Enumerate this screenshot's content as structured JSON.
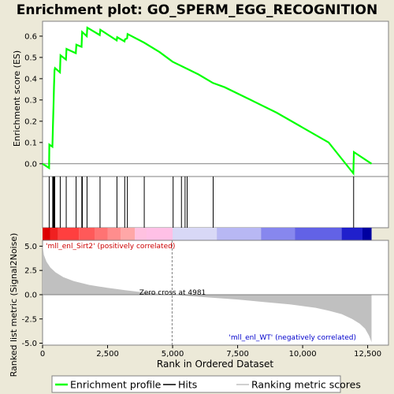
{
  "title": "Enrichment plot: GO_SPERM_EGG_RECOGNITION",
  "colors": {
    "background": "#ece9d8",
    "enrichment_line": "#00ff00",
    "hits": "#000000",
    "ranking_fill": "#c0c0c0",
    "zero_cross_line": "#808080",
    "positive_label": "#cc0000",
    "negative_label": "#0000cc"
  },
  "chart_data": [
    {
      "name": "enrichment-panel",
      "type": "line",
      "ylabel": "Enrichment score (ES)",
      "ylim": [
        -0.06,
        0.67
      ],
      "yticks": [
        "0.0",
        "0.1",
        "0.2",
        "0.3",
        "0.4",
        "0.5",
        "0.6"
      ],
      "xlim": [
        0,
        13300
      ],
      "grid": false,
      "series": [
        {
          "name": "Enrichment profile",
          "x": [
            0,
            250,
            260,
            380,
            400,
            420,
            440,
            460,
            480,
            670,
            690,
            900,
            920,
            1280,
            1300,
            1500,
            1520,
            1700,
            1720,
            2200,
            2220,
            2850,
            2870,
            3150,
            3170,
            3250,
            3270,
            3900,
            4500,
            5000,
            5500,
            6000,
            6550,
            7000,
            8000,
            9000,
            10000,
            11000,
            11950,
            11970,
            12650
          ],
          "y": [
            0.0,
            -0.02,
            0.09,
            0.08,
            0.18,
            0.27,
            0.36,
            0.44,
            0.45,
            0.43,
            0.51,
            0.49,
            0.54,
            0.52,
            0.56,
            0.55,
            0.62,
            0.6,
            0.64,
            0.605,
            0.63,
            0.58,
            0.595,
            0.575,
            0.585,
            0.59,
            0.61,
            0.57,
            0.525,
            0.48,
            0.45,
            0.42,
            0.38,
            0.36,
            0.3,
            0.24,
            0.17,
            0.1,
            -0.045,
            0.055,
            0.0
          ]
        }
      ]
    },
    {
      "name": "hits-panel",
      "type": "scatter",
      "series": [
        {
          "name": "Hits",
          "x": [
            255,
            390,
            410,
            430,
            450,
            470,
            680,
            910,
            1290,
            1510,
            1530,
            1710,
            2210,
            2860,
            3160,
            3260,
            3910,
            5020,
            5340,
            5480,
            5560,
            6560,
            11960
          ]
        }
      ]
    },
    {
      "name": "ranking-panel",
      "type": "area",
      "ylabel": "Ranked list metric (Signal2Noise)",
      "xlabel": "Rank in Ordered Dataset",
      "ylim": [
        -5.2,
        5.6
      ],
      "yticks": [
        "-5.0",
        "-2.5",
        "0.0",
        "2.5",
        "5.0"
      ],
      "xlim": [
        0,
        13300
      ],
      "xticks": [
        "0",
        "2,500",
        "5,000",
        "7,500",
        "10,000",
        "12,500"
      ],
      "xtick_values": [
        0,
        2500,
        5000,
        7500,
        10000,
        12500
      ],
      "zero_cross": 4981,
      "series": [
        {
          "name": "Ranking metric scores",
          "x": [
            0,
            50,
            150,
            300,
            500,
            800,
            1200,
            1800,
            2500,
            3200,
            4000,
            4981,
            5500,
            6500,
            7500,
            8500,
            9500,
            10500,
            11000,
            11500,
            11900,
            12200,
            12400,
            12550,
            12650
          ],
          "y": [
            5.1,
            4.1,
            3.4,
            2.8,
            2.3,
            1.8,
            1.4,
            1.0,
            0.7,
            0.45,
            0.2,
            0.0,
            -0.12,
            -0.3,
            -0.5,
            -0.75,
            -1.0,
            -1.35,
            -1.65,
            -2.0,
            -2.5,
            -3.0,
            -3.5,
            -4.2,
            -4.9
          ]
        }
      ],
      "annotations": {
        "positive": "'mll_enl_Sirt2' (positively correlated)",
        "negative": "'mll_enl_WT' (negatively correlated)",
        "zero_cross": "Zero cross at 4981"
      }
    },
    {
      "name": "heatmap-bar",
      "type": "heatmap",
      "segments": [
        {
          "start": 0,
          "end": 300,
          "color": "#dd0000"
        },
        {
          "start": 300,
          "end": 600,
          "color": "#f02020"
        },
        {
          "start": 600,
          "end": 1400,
          "color": "#ff3f3f"
        },
        {
          "start": 1400,
          "end": 2000,
          "color": "#ff5959"
        },
        {
          "start": 2000,
          "end": 2500,
          "color": "#ff7373"
        },
        {
          "start": 2500,
          "end": 3000,
          "color": "#ff8d8d"
        },
        {
          "start": 3000,
          "end": 3550,
          "color": "#ffa7a7"
        },
        {
          "start": 3550,
          "end": 4000,
          "color": "#ffc1e0"
        },
        {
          "start": 4000,
          "end": 5000,
          "color": "#ffc0e6"
        },
        {
          "start": 5000,
          "end": 6700,
          "color": "#d8d8f6"
        },
        {
          "start": 6700,
          "end": 8400,
          "color": "#b8b8f4"
        },
        {
          "start": 8400,
          "end": 9700,
          "color": "#8787ee"
        },
        {
          "start": 9700,
          "end": 11500,
          "color": "#6262e6"
        },
        {
          "start": 11500,
          "end": 12300,
          "color": "#2020cc"
        },
        {
          "start": 12300,
          "end": 12650,
          "color": "#0000a0"
        }
      ]
    }
  ],
  "legend": {
    "items": [
      {
        "label": "Enrichment profile",
        "type": "line",
        "color": "#00ff00"
      },
      {
        "label": "Hits",
        "type": "line",
        "color": "#000000"
      },
      {
        "label": "Ranking metric scores",
        "type": "line",
        "color": "#c0c0c0"
      }
    ]
  }
}
